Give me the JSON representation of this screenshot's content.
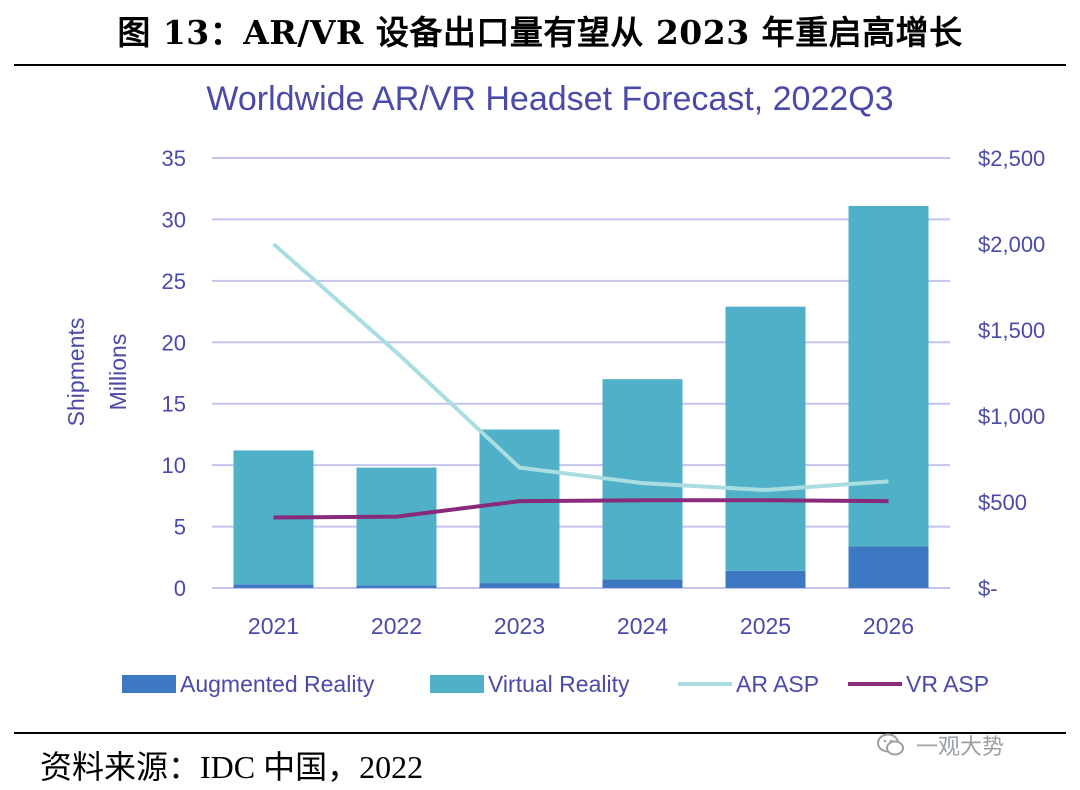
{
  "figure_title": "图 13：AR/VR 设备出口量有望从 2023 年重启高增长",
  "source_note": "资料来源：IDC 中国，2022",
  "watermark": {
    "text": "一观大势",
    "icon": "wechat-icon"
  },
  "colors": {
    "title": "#4a4aa8",
    "axis_text": "#4a4aa8",
    "grid": "#c4c4ee",
    "ar_bar": "#3d78c2",
    "vr_bar": "#4fb0c8",
    "ar_asp": "#a9dde0",
    "vr_asp": "#8a2a7a"
  },
  "chart_data": {
    "type": "bar",
    "stacked": true,
    "title": "Worldwide AR/VR Headset Forecast, 2022Q3",
    "categories": [
      "2021",
      "2022",
      "2023",
      "2024",
      "2025",
      "2026"
    ],
    "ylabel": "Shipments",
    "ylabel_unit": "Millions",
    "ylim": [
      0,
      35
    ],
    "yticks": [
      "0",
      "5",
      "10",
      "15",
      "20",
      "25",
      "30",
      "35"
    ],
    "y2lim": [
      0,
      2500
    ],
    "y2ticks": [
      "$-",
      "$500",
      "$1,000",
      "$1,500",
      "$2,000",
      "$2,500"
    ],
    "grid": true,
    "legend_position": "bottom",
    "series": [
      {
        "name": "Augmented Reality",
        "type": "bar",
        "axis": "left",
        "values": [
          0.3,
          0.2,
          0.4,
          0.7,
          1.4,
          3.4
        ]
      },
      {
        "name": "Virtual Reality",
        "type": "bar",
        "axis": "left",
        "values": [
          10.9,
          9.6,
          12.5,
          16.3,
          21.5,
          27.7
        ]
      },
      {
        "name": "AR ASP",
        "type": "line",
        "axis": "right",
        "values": [
          2000,
          1370,
          700,
          610,
          570,
          620
        ]
      },
      {
        "name": "VR ASP",
        "type": "line",
        "axis": "right",
        "values": [
          410,
          415,
          505,
          510,
          510,
          505
        ]
      }
    ]
  }
}
